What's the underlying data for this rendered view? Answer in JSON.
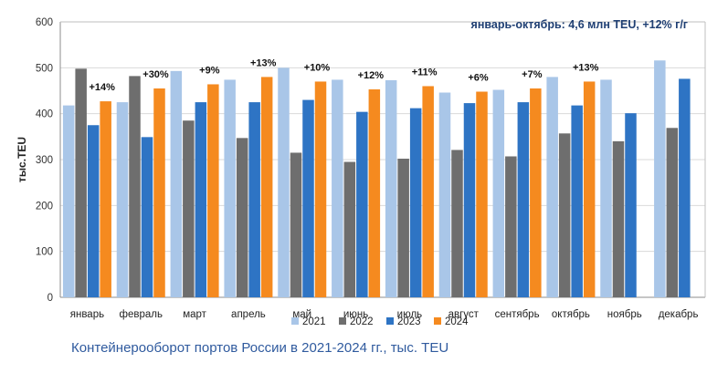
{
  "chart_data": {
    "type": "bar",
    "title": "",
    "annotation": "январь-октябрь:  4,6 млн TEU, +12% г/г",
    "xlabel": "",
    "ylabel": "тыс.TEU",
    "ylim": [
      0,
      600
    ],
    "yticks": [
      0,
      100,
      200,
      300,
      400,
      500,
      600
    ],
    "categories": [
      "январь",
      "февраль",
      "март",
      "апрель",
      "май",
      "июнь",
      "июль",
      "август",
      "сентябрь",
      "октябрь",
      "ноябрь",
      "декабрь"
    ],
    "series": [
      {
        "name": "2021",
        "color": "#a9c6e8",
        "values": [
          418,
          425,
          493,
          474,
          500,
          474,
          473,
          446,
          452,
          480,
          474,
          516
        ]
      },
      {
        "name": "2022",
        "color": "#6e6e6e",
        "values": [
          498,
          482,
          385,
          347,
          315,
          295,
          302,
          321,
          307,
          357,
          340,
          369
        ]
      },
      {
        "name": "2023",
        "color": "#2e74c4",
        "values": [
          375,
          349,
          425,
          425,
          430,
          404,
          412,
          423,
          425,
          418,
          401,
          476
        ]
      },
      {
        "name": "2024",
        "color": "#f58a1f",
        "values": [
          427,
          455,
          464,
          480,
          470,
          453,
          460,
          448,
          455,
          470,
          null,
          null
        ]
      }
    ],
    "growth_labels": [
      "+14%",
      "+30%",
      "+9%",
      "+13%",
      "+10%",
      "+12%",
      "+11%",
      "+6%",
      "+7%",
      "+13%",
      null,
      null
    ],
    "legend_position": "bottom",
    "grid": true
  },
  "caption": "Контейнерооборот портов России в 2021-2024 гг., тыс. TEU",
  "colors": {
    "axis": "#555555",
    "grid": "#d9d9d9",
    "caption": "#2f5a9e",
    "annotation": "#1f3f73"
  }
}
